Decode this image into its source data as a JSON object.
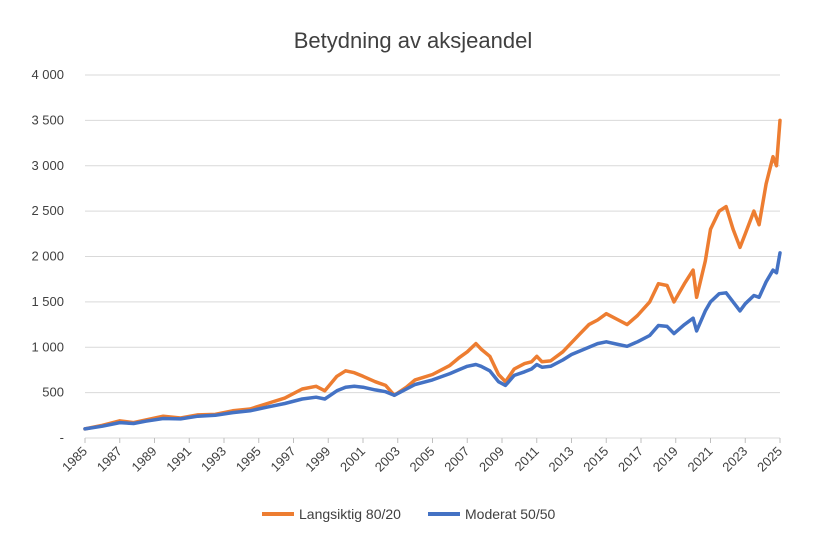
{
  "chart_data": {
    "type": "line",
    "title": "Betydning av aksjeandel",
    "xlabel": "",
    "ylabel": "",
    "ylim": [
      0,
      4000
    ],
    "xlim": [
      1985,
      2025
    ],
    "grid": true,
    "legend_position": "bottom",
    "y_ticks": [
      {
        "value": 0,
        "label": "-"
      },
      {
        "value": 500,
        "label": "500"
      },
      {
        "value": 1000,
        "label": "1 000"
      },
      {
        "value": 1500,
        "label": "1 500"
      },
      {
        "value": 2000,
        "label": "2 000"
      },
      {
        "value": 2500,
        "label": "2 500"
      },
      {
        "value": 3000,
        "label": "3 000"
      },
      {
        "value": 3500,
        "label": "3 500"
      },
      {
        "value": 4000,
        "label": "4 000"
      }
    ],
    "x_ticks": [
      "1985",
      "1987",
      "1989",
      "1991",
      "1993",
      "1995",
      "1997",
      "1999",
      "2001",
      "2003",
      "2005",
      "2007",
      "2009",
      "2011",
      "2013",
      "2015",
      "2017",
      "2019",
      "2021",
      "2023",
      "2025"
    ],
    "series": [
      {
        "name": "Langsiktig 80/20",
        "color": "#ED7D31",
        "points": [
          [
            1985.0,
            100
          ],
          [
            1986.0,
            140
          ],
          [
            1987.0,
            190
          ],
          [
            1987.8,
            170
          ],
          [
            1988.5,
            200
          ],
          [
            1989.5,
            240
          ],
          [
            1990.5,
            220
          ],
          [
            1991.5,
            255
          ],
          [
            1992.5,
            260
          ],
          [
            1993.5,
            300
          ],
          [
            1994.5,
            320
          ],
          [
            1995.5,
            380
          ],
          [
            1996.5,
            440
          ],
          [
            1997.5,
            540
          ],
          [
            1998.3,
            570
          ],
          [
            1998.8,
            520
          ],
          [
            1999.5,
            680
          ],
          [
            2000.0,
            740
          ],
          [
            2000.5,
            720
          ],
          [
            2001.0,
            680
          ],
          [
            2001.7,
            620
          ],
          [
            2002.3,
            580
          ],
          [
            2002.8,
            470
          ],
          [
            2003.5,
            560
          ],
          [
            2004.0,
            640
          ],
          [
            2005.0,
            700
          ],
          [
            2006.0,
            800
          ],
          [
            2006.5,
            880
          ],
          [
            2007.0,
            950
          ],
          [
            2007.5,
            1040
          ],
          [
            2007.8,
            980
          ],
          [
            2008.3,
            900
          ],
          [
            2008.8,
            700
          ],
          [
            2009.2,
            620
          ],
          [
            2009.7,
            760
          ],
          [
            2010.3,
            820
          ],
          [
            2010.7,
            840
          ],
          [
            2011.0,
            900
          ],
          [
            2011.3,
            840
          ],
          [
            2011.8,
            850
          ],
          [
            2012.5,
            950
          ],
          [
            2013.0,
            1050
          ],
          [
            2013.5,
            1150
          ],
          [
            2014.0,
            1250
          ],
          [
            2014.5,
            1300
          ],
          [
            2015.0,
            1370
          ],
          [
            2015.7,
            1300
          ],
          [
            2016.2,
            1250
          ],
          [
            2016.8,
            1350
          ],
          [
            2017.5,
            1500
          ],
          [
            2018.0,
            1700
          ],
          [
            2018.5,
            1680
          ],
          [
            2018.9,
            1500
          ],
          [
            2019.5,
            1700
          ],
          [
            2020.0,
            1850
          ],
          [
            2020.2,
            1550
          ],
          [
            2020.7,
            1950
          ],
          [
            2021.0,
            2300
          ],
          [
            2021.5,
            2500
          ],
          [
            2021.9,
            2550
          ],
          [
            2022.3,
            2300
          ],
          [
            2022.7,
            2100
          ],
          [
            2023.0,
            2250
          ],
          [
            2023.5,
            2500
          ],
          [
            2023.8,
            2350
          ],
          [
            2024.2,
            2800
          ],
          [
            2024.6,
            3100
          ],
          [
            2024.8,
            3000
          ],
          [
            2025.0,
            3500
          ]
        ]
      },
      {
        "name": "Moderat 50/50",
        "color": "#4472C4",
        "points": [
          [
            1985.0,
            100
          ],
          [
            1986.0,
            130
          ],
          [
            1987.0,
            170
          ],
          [
            1987.8,
            160
          ],
          [
            1988.5,
            185
          ],
          [
            1989.5,
            215
          ],
          [
            1990.5,
            210
          ],
          [
            1991.5,
            240
          ],
          [
            1992.5,
            250
          ],
          [
            1993.5,
            280
          ],
          [
            1994.5,
            300
          ],
          [
            1995.5,
            340
          ],
          [
            1996.5,
            380
          ],
          [
            1997.5,
            430
          ],
          [
            1998.3,
            450
          ],
          [
            1998.8,
            430
          ],
          [
            1999.5,
            520
          ],
          [
            2000.0,
            560
          ],
          [
            2000.5,
            570
          ],
          [
            2001.0,
            560
          ],
          [
            2001.7,
            530
          ],
          [
            2002.3,
            510
          ],
          [
            2002.8,
            470
          ],
          [
            2003.5,
            540
          ],
          [
            2004.0,
            590
          ],
          [
            2005.0,
            640
          ],
          [
            2006.0,
            710
          ],
          [
            2006.5,
            750
          ],
          [
            2007.0,
            790
          ],
          [
            2007.5,
            810
          ],
          [
            2007.8,
            790
          ],
          [
            2008.3,
            740
          ],
          [
            2008.8,
            620
          ],
          [
            2009.2,
            580
          ],
          [
            2009.7,
            690
          ],
          [
            2010.3,
            730
          ],
          [
            2010.7,
            760
          ],
          [
            2011.0,
            810
          ],
          [
            2011.3,
            780
          ],
          [
            2011.8,
            790
          ],
          [
            2012.5,
            860
          ],
          [
            2013.0,
            920
          ],
          [
            2013.5,
            960
          ],
          [
            2014.0,
            1000
          ],
          [
            2014.5,
            1040
          ],
          [
            2015.0,
            1060
          ],
          [
            2015.7,
            1030
          ],
          [
            2016.2,
            1010
          ],
          [
            2016.8,
            1060
          ],
          [
            2017.5,
            1130
          ],
          [
            2018.0,
            1240
          ],
          [
            2018.5,
            1230
          ],
          [
            2018.9,
            1150
          ],
          [
            2019.5,
            1250
          ],
          [
            2020.0,
            1320
          ],
          [
            2020.2,
            1180
          ],
          [
            2020.7,
            1400
          ],
          [
            2021.0,
            1500
          ],
          [
            2021.5,
            1590
          ],
          [
            2021.9,
            1600
          ],
          [
            2022.3,
            1500
          ],
          [
            2022.7,
            1400
          ],
          [
            2023.0,
            1480
          ],
          [
            2023.5,
            1570
          ],
          [
            2023.8,
            1550
          ],
          [
            2024.2,
            1720
          ],
          [
            2024.6,
            1850
          ],
          [
            2024.8,
            1820
          ],
          [
            2025.0,
            2040
          ]
        ]
      }
    ]
  }
}
